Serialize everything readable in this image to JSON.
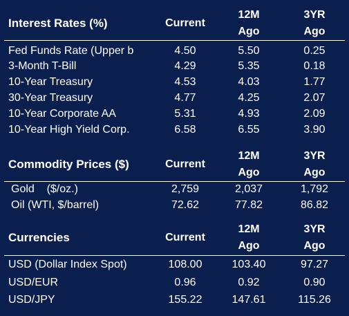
{
  "sections": [
    {
      "title": "Interest Rates (%)",
      "columns": {
        "current": "Current",
        "m12_l1": "12M",
        "m12_l2": "Ago",
        "y3_l1": "3YR",
        "y3_l2": "Ago"
      },
      "rows": [
        {
          "label": "Fed Funds Rate (Upper b",
          "current": "4.50",
          "m12": "5.50",
          "y3": "0.25"
        },
        {
          "label": "3-Month T-Bill",
          "current": "4.29",
          "m12": "5.35",
          "y3": "0.18"
        },
        {
          "label": "10-Year Treasury",
          "current": "4.53",
          "m12": "4.03",
          "y3": "1.77"
        },
        {
          "label": "30-Year Treasury",
          "current": "4.77",
          "m12": "4.25",
          "y3": "2.07"
        },
        {
          "label": "10-Year Corporate AA",
          "current": "5.31",
          "m12": "4.93",
          "y3": "2.09"
        },
        {
          "label": "10-Year High Yield Corp.",
          "current": "6.58",
          "m12": "6.55",
          "y3": "3.90"
        }
      ]
    },
    {
      "title": "Commodity Prices ($)",
      "columns": {
        "current": "Current",
        "m12_l1": "12M",
        "m12_l2": "Ago",
        "y3_l1": "3YR",
        "y3_l2": "Ago"
      },
      "rows": [
        {
          "label": "Gold    ($/oz.)",
          "current": "2,759",
          "m12": "2,037",
          "y3": "1,792"
        },
        {
          "label": "Oil (WTI, $/barrel)",
          "current": "72.62",
          "m12": "77.82",
          "y3": "86.82"
        }
      ]
    },
    {
      "title": "Currencies",
      "columns": {
        "current": "Current",
        "m12_l1": "12M",
        "m12_l2": "Ago",
        "y3_l1": "3YR",
        "y3_l2": "Ago"
      },
      "rows": [
        {
          "label": "USD (Dollar Index Spot)",
          "current": "108.00",
          "m12": "103.40",
          "y3": "97.27"
        },
        {
          "label": "USD/EUR",
          "current": "0.96",
          "m12": "0.92",
          "y3": "0.90"
        },
        {
          "label": "USD/JPY",
          "current": "155.22",
          "m12": "147.61",
          "y3": "115.26"
        }
      ]
    }
  ],
  "colors": {
    "background": "#0b1f4f",
    "text": "#ffffff",
    "rule": "#ffffff"
  }
}
